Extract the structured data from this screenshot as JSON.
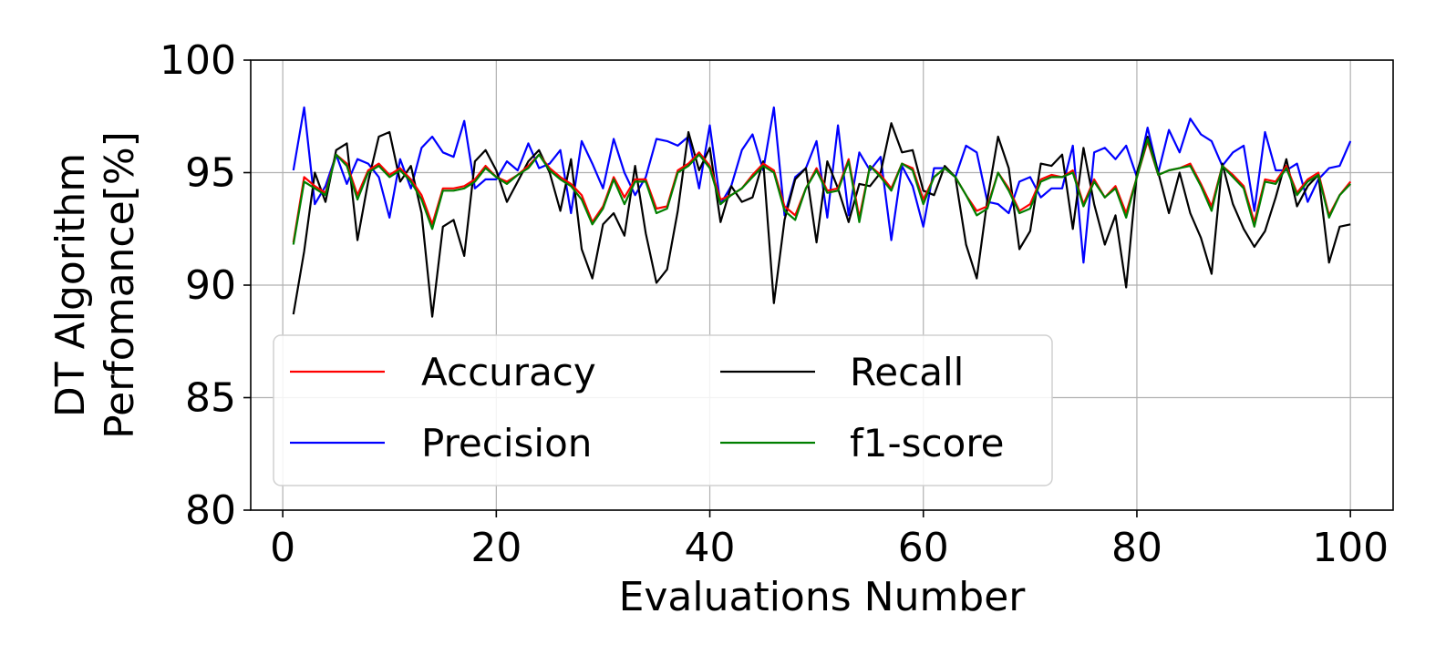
{
  "chart_data": {
    "type": "line",
    "title": "",
    "xlabel": "Evaluations Number",
    "ylabel": [
      "DT Algorithm",
      "Perfomance[%]"
    ],
    "xlim": [
      -3,
      104
    ],
    "ylim": [
      80,
      100
    ],
    "xticks": [
      0,
      20,
      40,
      60,
      80,
      100
    ],
    "yticks": [
      80,
      85,
      90,
      95,
      100
    ],
    "grid": true,
    "legend": {
      "placement": "lower-left",
      "columns": 2
    },
    "x_start": 1,
    "series": [
      {
        "name": "Accuracy",
        "color": "#ff0000",
        "values": [
          91.9,
          94.8,
          94.4,
          94.1,
          95.8,
          95.4,
          94.0,
          95.1,
          95.4,
          94.9,
          95.2,
          94.7,
          94.0,
          92.7,
          94.3,
          94.3,
          94.4,
          94.7,
          95.3,
          94.8,
          94.6,
          94.9,
          95.3,
          95.8,
          95.2,
          94.8,
          94.5,
          94.0,
          92.8,
          93.5,
          94.8,
          93.9,
          94.7,
          94.7,
          93.4,
          93.5,
          95.1,
          95.4,
          95.9,
          95.3,
          93.8,
          94.0,
          94.3,
          94.9,
          95.4,
          95.1,
          93.5,
          93.1,
          94.3,
          95.2,
          94.2,
          94.3,
          95.6,
          93.0,
          95.3,
          94.9,
          94.3,
          95.4,
          95.2,
          93.8,
          94.8,
          95.2,
          94.8,
          94.0,
          93.3,
          93.5,
          95.0,
          94.3,
          93.3,
          93.6,
          94.7,
          94.9,
          94.8,
          95.1,
          93.6,
          94.7,
          93.9,
          94.4,
          93.2,
          94.8,
          96.4,
          94.9,
          95.1,
          95.2,
          95.4,
          94.5,
          93.5,
          95.3,
          94.9,
          94.4,
          92.8,
          94.7,
          94.6,
          95.3,
          94.1,
          94.7,
          95.0,
          93.1,
          94.0,
          94.6
        ]
      },
      {
        "name": "Precision",
        "color": "#0000ff",
        "values": [
          95.1,
          97.9,
          93.6,
          94.4,
          95.8,
          94.5,
          95.6,
          95.4,
          94.8,
          93.0,
          95.6,
          94.3,
          96.1,
          96.6,
          95.9,
          95.7,
          97.3,
          94.3,
          94.7,
          94.7,
          95.5,
          95.1,
          96.3,
          95.2,
          95.4,
          96.0,
          93.2,
          96.4,
          95.4,
          94.3,
          96.5,
          95.0,
          94.0,
          94.8,
          96.5,
          96.4,
          96.2,
          96.6,
          94.3,
          97.1,
          93.6,
          94.4,
          96.0,
          96.7,
          95.1,
          97.9,
          93.1,
          94.8,
          95.2,
          96.4,
          93.0,
          97.1,
          93.1,
          95.9,
          95.1,
          95.7,
          92.0,
          95.3,
          94.4,
          92.6,
          95.2,
          95.2,
          94.8,
          96.2,
          95.9,
          93.7,
          93.6,
          93.2,
          94.6,
          94.8,
          93.9,
          94.3,
          94.3,
          96.2,
          91.0,
          95.9,
          96.1,
          95.6,
          96.2,
          94.8,
          97.0,
          95.0,
          96.9,
          95.9,
          97.4,
          96.7,
          96.4,
          95.3,
          95.9,
          96.2,
          93.3,
          96.8,
          95.1,
          95.1,
          95.4,
          93.7,
          94.7,
          95.2,
          95.3,
          96.4
        ]
      },
      {
        "name": "Recall",
        "color": "#000000",
        "values": [
          88.7,
          91.5,
          95.0,
          93.7,
          96.0,
          96.3,
          92.0,
          94.6,
          96.6,
          96.8,
          94.6,
          95.3,
          93.2,
          88.6,
          92.6,
          92.9,
          91.3,
          95.5,
          96.0,
          95.1,
          93.7,
          94.6,
          95.5,
          96.0,
          95.0,
          93.3,
          95.6,
          91.6,
          90.3,
          92.7,
          93.2,
          92.2,
          95.3,
          92.3,
          90.1,
          90.7,
          93.3,
          96.8,
          95.1,
          96.1,
          92.8,
          94.4,
          93.7,
          93.9,
          95.5,
          89.2,
          92.9,
          94.7,
          95.2,
          91.9,
          95.5,
          94.3,
          92.8,
          94.5,
          94.4,
          95.0,
          97.2,
          95.9,
          96.0,
          94.2,
          94.0,
          95.3,
          94.8,
          91.8,
          90.3,
          93.8,
          96.6,
          95.2,
          91.6,
          92.4,
          95.4,
          95.3,
          95.8,
          92.5,
          96.1,
          93.6,
          91.8,
          93.1,
          89.9,
          95.0,
          96.6,
          95.0,
          93.2,
          95.0,
          93.2,
          92.1,
          90.5,
          95.4,
          93.6,
          92.5,
          91.7,
          92.4,
          93.9,
          95.6,
          93.5,
          94.4,
          94.9,
          91.0,
          92.6,
          92.7
        ]
      },
      {
        "name": "f1-score",
        "color": "#007f00",
        "values": [
          91.8,
          94.6,
          94.3,
          94.0,
          95.8,
          95.3,
          93.8,
          95.0,
          95.3,
          94.8,
          95.1,
          94.6,
          93.8,
          92.5,
          94.2,
          94.2,
          94.3,
          94.6,
          95.2,
          94.8,
          94.5,
          94.9,
          95.2,
          95.8,
          95.1,
          94.7,
          94.4,
          93.8,
          92.7,
          93.4,
          94.7,
          93.6,
          94.6,
          94.6,
          93.2,
          93.4,
          95.0,
          95.3,
          95.8,
          95.2,
          93.6,
          94.0,
          94.3,
          94.8,
          95.3,
          95.0,
          93.3,
          92.9,
          94.3,
          95.1,
          94.1,
          94.2,
          95.5,
          92.8,
          95.3,
          94.8,
          94.2,
          95.4,
          95.1,
          93.6,
          94.8,
          95.2,
          94.8,
          94.0,
          93.1,
          93.4,
          95.0,
          94.2,
          93.2,
          93.4,
          94.6,
          94.8,
          94.8,
          95.0,
          93.5,
          94.6,
          93.9,
          94.3,
          93.0,
          94.8,
          96.5,
          94.9,
          95.1,
          95.2,
          95.3,
          94.4,
          93.3,
          95.3,
          94.8,
          94.3,
          92.6,
          94.6,
          94.5,
          95.2,
          94.0,
          94.6,
          94.9,
          93.0,
          94.0,
          94.5
        ]
      }
    ]
  }
}
